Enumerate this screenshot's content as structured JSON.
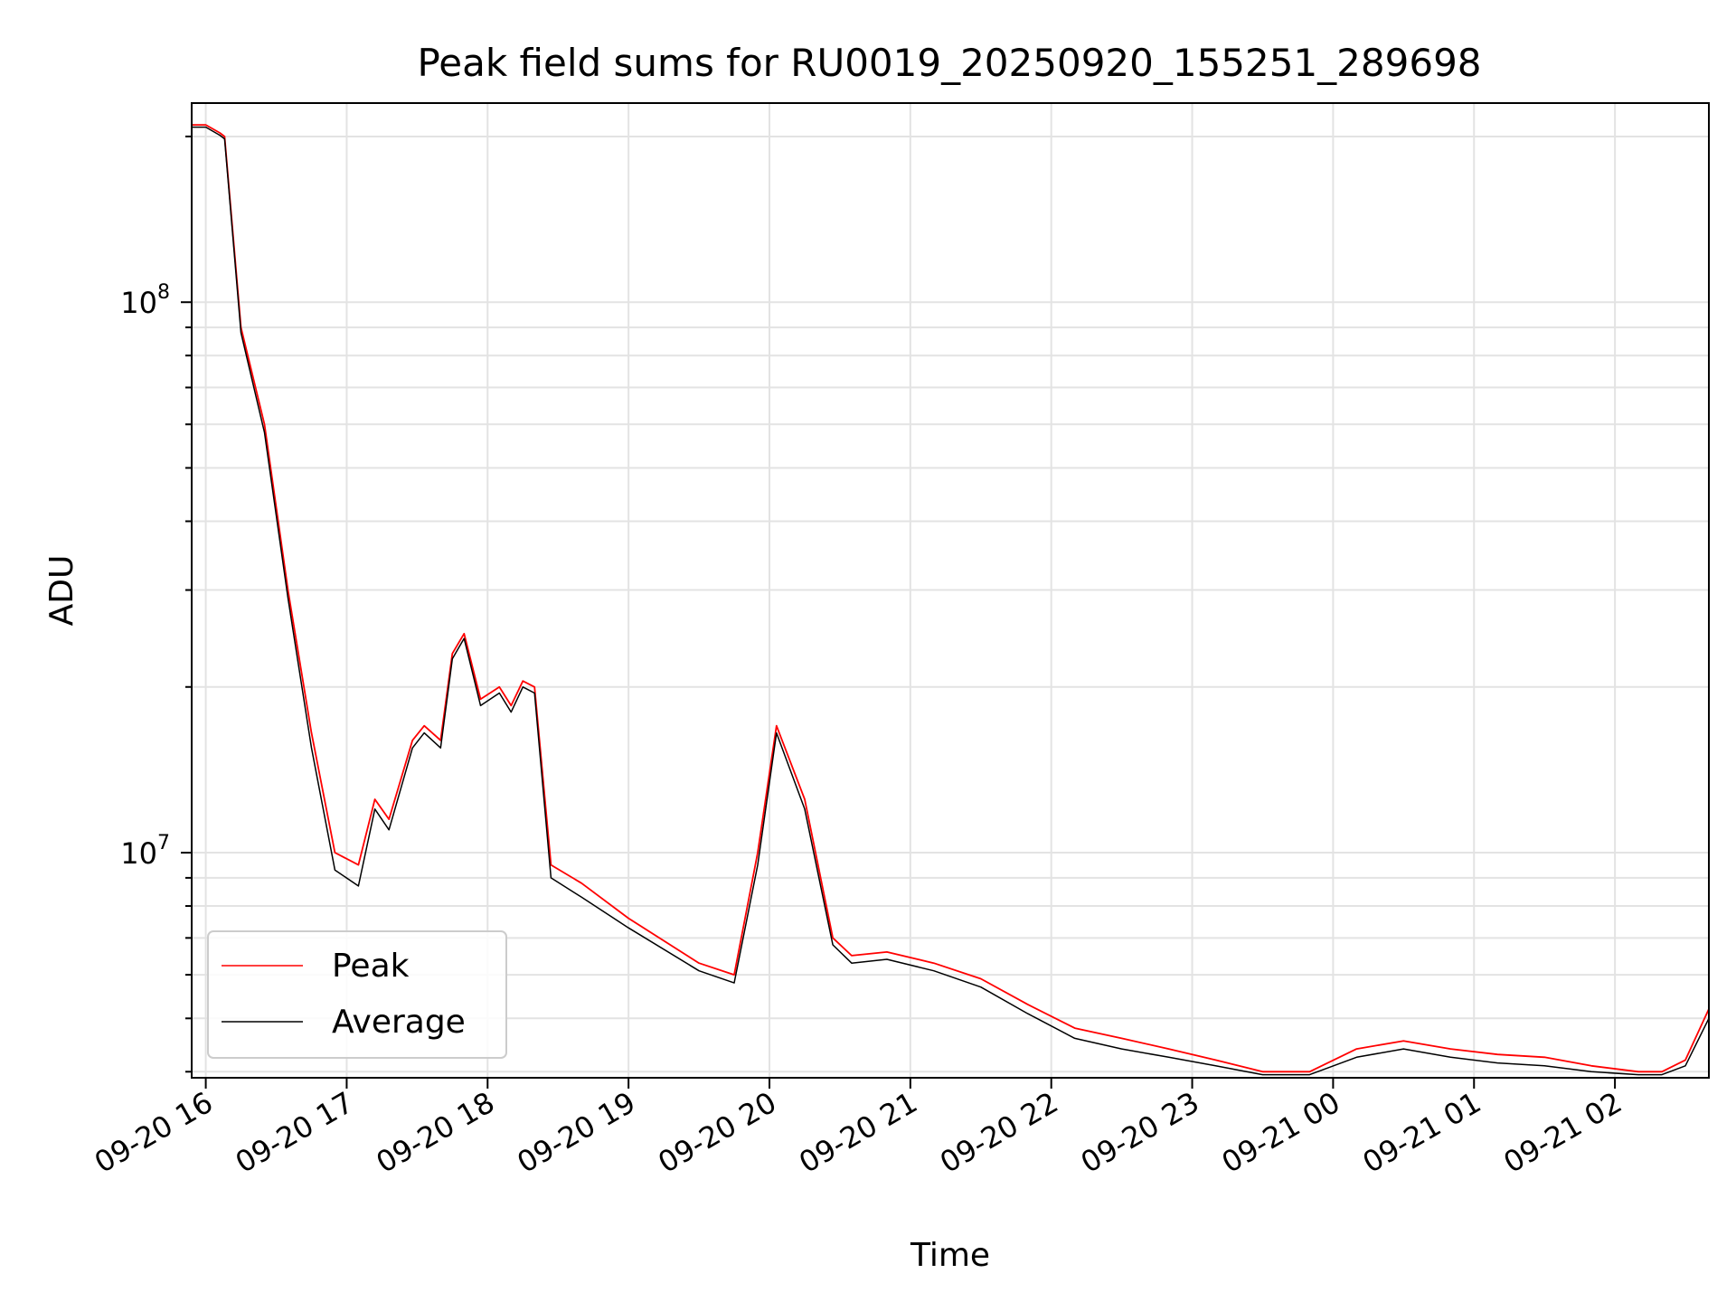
{
  "chart_data": {
    "type": "line",
    "title": "Peak field sums for RU0019_20250920_155251_289698",
    "xlabel": "Time",
    "ylabel": "ADU",
    "y_scale": "log",
    "grid": true,
    "legend_placement": "lower-left",
    "xlim": [
      "2025-09-20 15:54",
      "2025-09-21 02:40"
    ],
    "ylim": [
      3900000,
      230000000
    ],
    "x_ticks": [
      "2025-09-20 16:00",
      "2025-09-20 17:00",
      "2025-09-20 18:00",
      "2025-09-20 19:00",
      "2025-09-20 20:00",
      "2025-09-20 21:00",
      "2025-09-20 22:00",
      "2025-09-20 23:00",
      "2025-09-21 00:00",
      "2025-09-21 01:00",
      "2025-09-21 02:00"
    ],
    "x_tick_labels": [
      "09-20 16",
      "09-20 17",
      "09-20 18",
      "09-20 19",
      "09-20 20",
      "09-20 21",
      "09-20 22",
      "09-20 23",
      "09-21 00",
      "09-21 01",
      "09-21 02"
    ],
    "y_ticks": [
      10000000,
      100000000
    ],
    "y_tick_labels": [
      {
        "base": "10",
        "exp": "7"
      },
      {
        "base": "10",
        "exp": "8"
      }
    ],
    "series": [
      {
        "name": "Peak",
        "color": "#ff0000",
        "points": [
          [
            "2025-09-20 15:54",
            210000000
          ],
          [
            "2025-09-20 16:00",
            210000000
          ],
          [
            "2025-09-20 16:06",
            203000000
          ],
          [
            "2025-09-20 16:08",
            200000000
          ],
          [
            "2025-09-20 16:15",
            90000000
          ],
          [
            "2025-09-20 16:25",
            60000000
          ],
          [
            "2025-09-20 16:35",
            30000000
          ],
          [
            "2025-09-20 16:45",
            16500000
          ],
          [
            "2025-09-20 16:55",
            10000000
          ],
          [
            "2025-09-20 17:05",
            9500000
          ],
          [
            "2025-09-20 17:12",
            12500000
          ],
          [
            "2025-09-20 17:18",
            11500000
          ],
          [
            "2025-09-20 17:28",
            16000000
          ],
          [
            "2025-09-20 17:33",
            17000000
          ],
          [
            "2025-09-20 17:40",
            16000000
          ],
          [
            "2025-09-20 17:45",
            23000000
          ],
          [
            "2025-09-20 17:50",
            25000000
          ],
          [
            "2025-09-20 17:57",
            19000000
          ],
          [
            "2025-09-20 18:05",
            20000000
          ],
          [
            "2025-09-20 18:10",
            18500000
          ],
          [
            "2025-09-20 18:15",
            20500000
          ],
          [
            "2025-09-20 18:20",
            20000000
          ],
          [
            "2025-09-20 18:27",
            9500000
          ],
          [
            "2025-09-20 18:40",
            8800000
          ],
          [
            "2025-09-20 19:00",
            7600000
          ],
          [
            "2025-09-20 19:30",
            6300000
          ],
          [
            "2025-09-20 19:45",
            6000000
          ],
          [
            "2025-09-20 19:55",
            10000000
          ],
          [
            "2025-09-20 20:03",
            17000000
          ],
          [
            "2025-09-20 20:15",
            12500000
          ],
          [
            "2025-09-20 20:27",
            7000000
          ],
          [
            "2025-09-20 20:35",
            6500000
          ],
          [
            "2025-09-20 20:50",
            6600000
          ],
          [
            "2025-09-20 21:10",
            6300000
          ],
          [
            "2025-09-20 21:30",
            5900000
          ],
          [
            "2025-09-20 21:50",
            5300000
          ],
          [
            "2025-09-20 22:10",
            4800000
          ],
          [
            "2025-09-20 22:30",
            4600000
          ],
          [
            "2025-09-20 22:50",
            4400000
          ],
          [
            "2025-09-20 23:10",
            4200000
          ],
          [
            "2025-09-20 23:30",
            4000000
          ],
          [
            "2025-09-20 23:50",
            4000000
          ],
          [
            "2025-09-21 00:10",
            4400000
          ],
          [
            "2025-09-21 00:30",
            4550000
          ],
          [
            "2025-09-21 00:50",
            4400000
          ],
          [
            "2025-09-21 01:10",
            4300000
          ],
          [
            "2025-09-21 01:30",
            4250000
          ],
          [
            "2025-09-21 01:50",
            4100000
          ],
          [
            "2025-09-21 02:10",
            4000000
          ],
          [
            "2025-09-21 02:20",
            4000000
          ],
          [
            "2025-09-21 02:30",
            4200000
          ],
          [
            "2025-09-21 02:40",
            5200000
          ]
        ]
      },
      {
        "name": "Average",
        "color": "#000000",
        "points": [
          [
            "2025-09-20 15:54",
            208000000
          ],
          [
            "2025-09-20 16:00",
            208000000
          ],
          [
            "2025-09-20 16:06",
            201000000
          ],
          [
            "2025-09-20 16:08",
            198000000
          ],
          [
            "2025-09-20 16:15",
            88000000
          ],
          [
            "2025-09-20 16:25",
            58000000
          ],
          [
            "2025-09-20 16:35",
            29000000
          ],
          [
            "2025-09-20 16:45",
            15500000
          ],
          [
            "2025-09-20 16:55",
            9300000
          ],
          [
            "2025-09-20 17:05",
            8700000
          ],
          [
            "2025-09-20 17:12",
            12000000
          ],
          [
            "2025-09-20 17:18",
            11000000
          ],
          [
            "2025-09-20 17:28",
            15500000
          ],
          [
            "2025-09-20 17:33",
            16500000
          ],
          [
            "2025-09-20 17:40",
            15500000
          ],
          [
            "2025-09-20 17:45",
            22500000
          ],
          [
            "2025-09-20 17:50",
            24500000
          ],
          [
            "2025-09-20 17:57",
            18500000
          ],
          [
            "2025-09-20 18:05",
            19500000
          ],
          [
            "2025-09-20 18:10",
            18000000
          ],
          [
            "2025-09-20 18:15",
            20000000
          ],
          [
            "2025-09-20 18:20",
            19500000
          ],
          [
            "2025-09-20 18:27",
            9000000
          ],
          [
            "2025-09-20 18:40",
            8300000
          ],
          [
            "2025-09-20 19:00",
            7300000
          ],
          [
            "2025-09-20 19:30",
            6100000
          ],
          [
            "2025-09-20 19:45",
            5800000
          ],
          [
            "2025-09-20 19:55",
            9500000
          ],
          [
            "2025-09-20 20:03",
            16500000
          ],
          [
            "2025-09-20 20:15",
            12000000
          ],
          [
            "2025-09-20 20:27",
            6800000
          ],
          [
            "2025-09-20 20:35",
            6300000
          ],
          [
            "2025-09-20 20:50",
            6400000
          ],
          [
            "2025-09-20 21:10",
            6100000
          ],
          [
            "2025-09-20 21:30",
            5700000
          ],
          [
            "2025-09-20 21:50",
            5100000
          ],
          [
            "2025-09-20 22:10",
            4600000
          ],
          [
            "2025-09-20 22:30",
            4400000
          ],
          [
            "2025-09-20 22:50",
            4250000
          ],
          [
            "2025-09-20 23:10",
            4100000
          ],
          [
            "2025-09-20 23:30",
            3950000
          ],
          [
            "2025-09-20 23:50",
            3950000
          ],
          [
            "2025-09-21 00:10",
            4250000
          ],
          [
            "2025-09-21 00:30",
            4400000
          ],
          [
            "2025-09-21 00:50",
            4250000
          ],
          [
            "2025-09-21 01:10",
            4150000
          ],
          [
            "2025-09-21 01:30",
            4100000
          ],
          [
            "2025-09-21 01:50",
            4000000
          ],
          [
            "2025-09-21 02:10",
            3950000
          ],
          [
            "2025-09-21 02:20",
            3950000
          ],
          [
            "2025-09-21 02:30",
            4100000
          ],
          [
            "2025-09-21 02:40",
            5000000
          ]
        ]
      }
    ]
  }
}
